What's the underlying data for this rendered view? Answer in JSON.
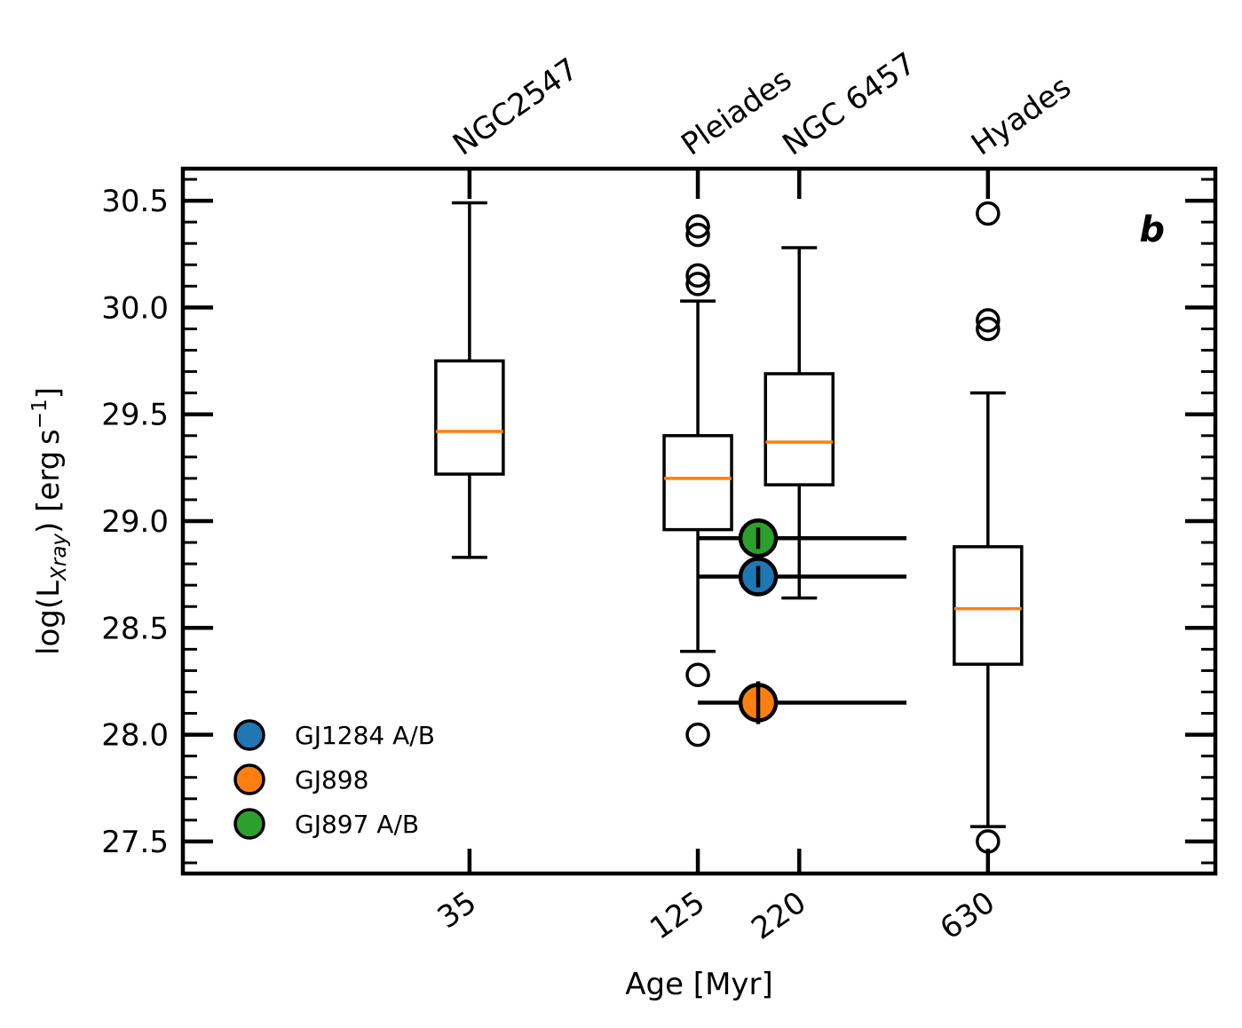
{
  "chart_data": {
    "type": "box",
    "panel_label": "b",
    "xlabel": "Age [Myr]",
    "ylabel": "log(L_Xray) [erg s^-1]",
    "ylabel_parts": {
      "prefix": "log(L",
      "sub": "Xray",
      "mid": ") [erg s",
      "sup": "−1",
      "suffix": "]"
    },
    "ylim": [
      27.35,
      30.65
    ],
    "yticks": [
      {
        "value": 27.5,
        "label": "27.5"
      },
      {
        "value": 28.0,
        "label": "28.0"
      },
      {
        "value": 28.5,
        "label": "28.5"
      },
      {
        "value": 29.0,
        "label": "29.0"
      },
      {
        "value": 29.5,
        "label": "29.5"
      },
      {
        "value": 30.0,
        "label": "30.0"
      },
      {
        "value": 30.5,
        "label": "30.5"
      }
    ],
    "xscale": "log",
    "xlim_log10": [
      0.85,
      3.35
    ],
    "clusters": [
      {
        "name": "NGC2547",
        "age_label": "35",
        "age": 35,
        "whisker_low": 28.83,
        "q1": 29.22,
        "median": 29.42,
        "q3": 29.75,
        "whisker_high": 30.49,
        "outliers": []
      },
      {
        "name": "Pleiades",
        "age_label": "125",
        "age": 125,
        "whisker_low": 28.39,
        "q1": 28.96,
        "median": 29.2,
        "q3": 29.4,
        "whisker_high": 30.03,
        "outliers": [
          30.38,
          30.34,
          30.15,
          30.11,
          28.28,
          28.0
        ]
      },
      {
        "name": "NGC 6457",
        "age_label": "220",
        "age": 220,
        "whisker_low": 28.64,
        "q1": 29.17,
        "median": 29.37,
        "q3": 29.69,
        "whisker_high": 30.28,
        "outliers": []
      },
      {
        "name": "Hyades",
        "age_label": "630",
        "age": 630,
        "whisker_low": 27.57,
        "q1": 28.33,
        "median": 28.59,
        "q3": 28.88,
        "whisker_high": 29.6,
        "outliers": [
          30.44,
          29.94,
          29.9,
          27.5
        ]
      }
    ],
    "targets": [
      {
        "name": "GJ1284 A/B",
        "color": "#1f77b4",
        "age": 175,
        "age_low": 125,
        "age_high": 400,
        "value": 28.74,
        "err": 0.05
      },
      {
        "name": "GJ898",
        "color": "#ff7f0e",
        "age": 175,
        "age_low": 125,
        "age_high": 400,
        "value": 28.15,
        "err": 0.1
      },
      {
        "name": "GJ897 A/B",
        "color": "#2ca02c",
        "age": 175,
        "age_low": 125,
        "age_high": 400,
        "value": 28.92,
        "err": 0.05
      }
    ],
    "legend_position": "lower-left",
    "colors": {
      "median": "#ff7f0e",
      "box": "#000000"
    }
  }
}
